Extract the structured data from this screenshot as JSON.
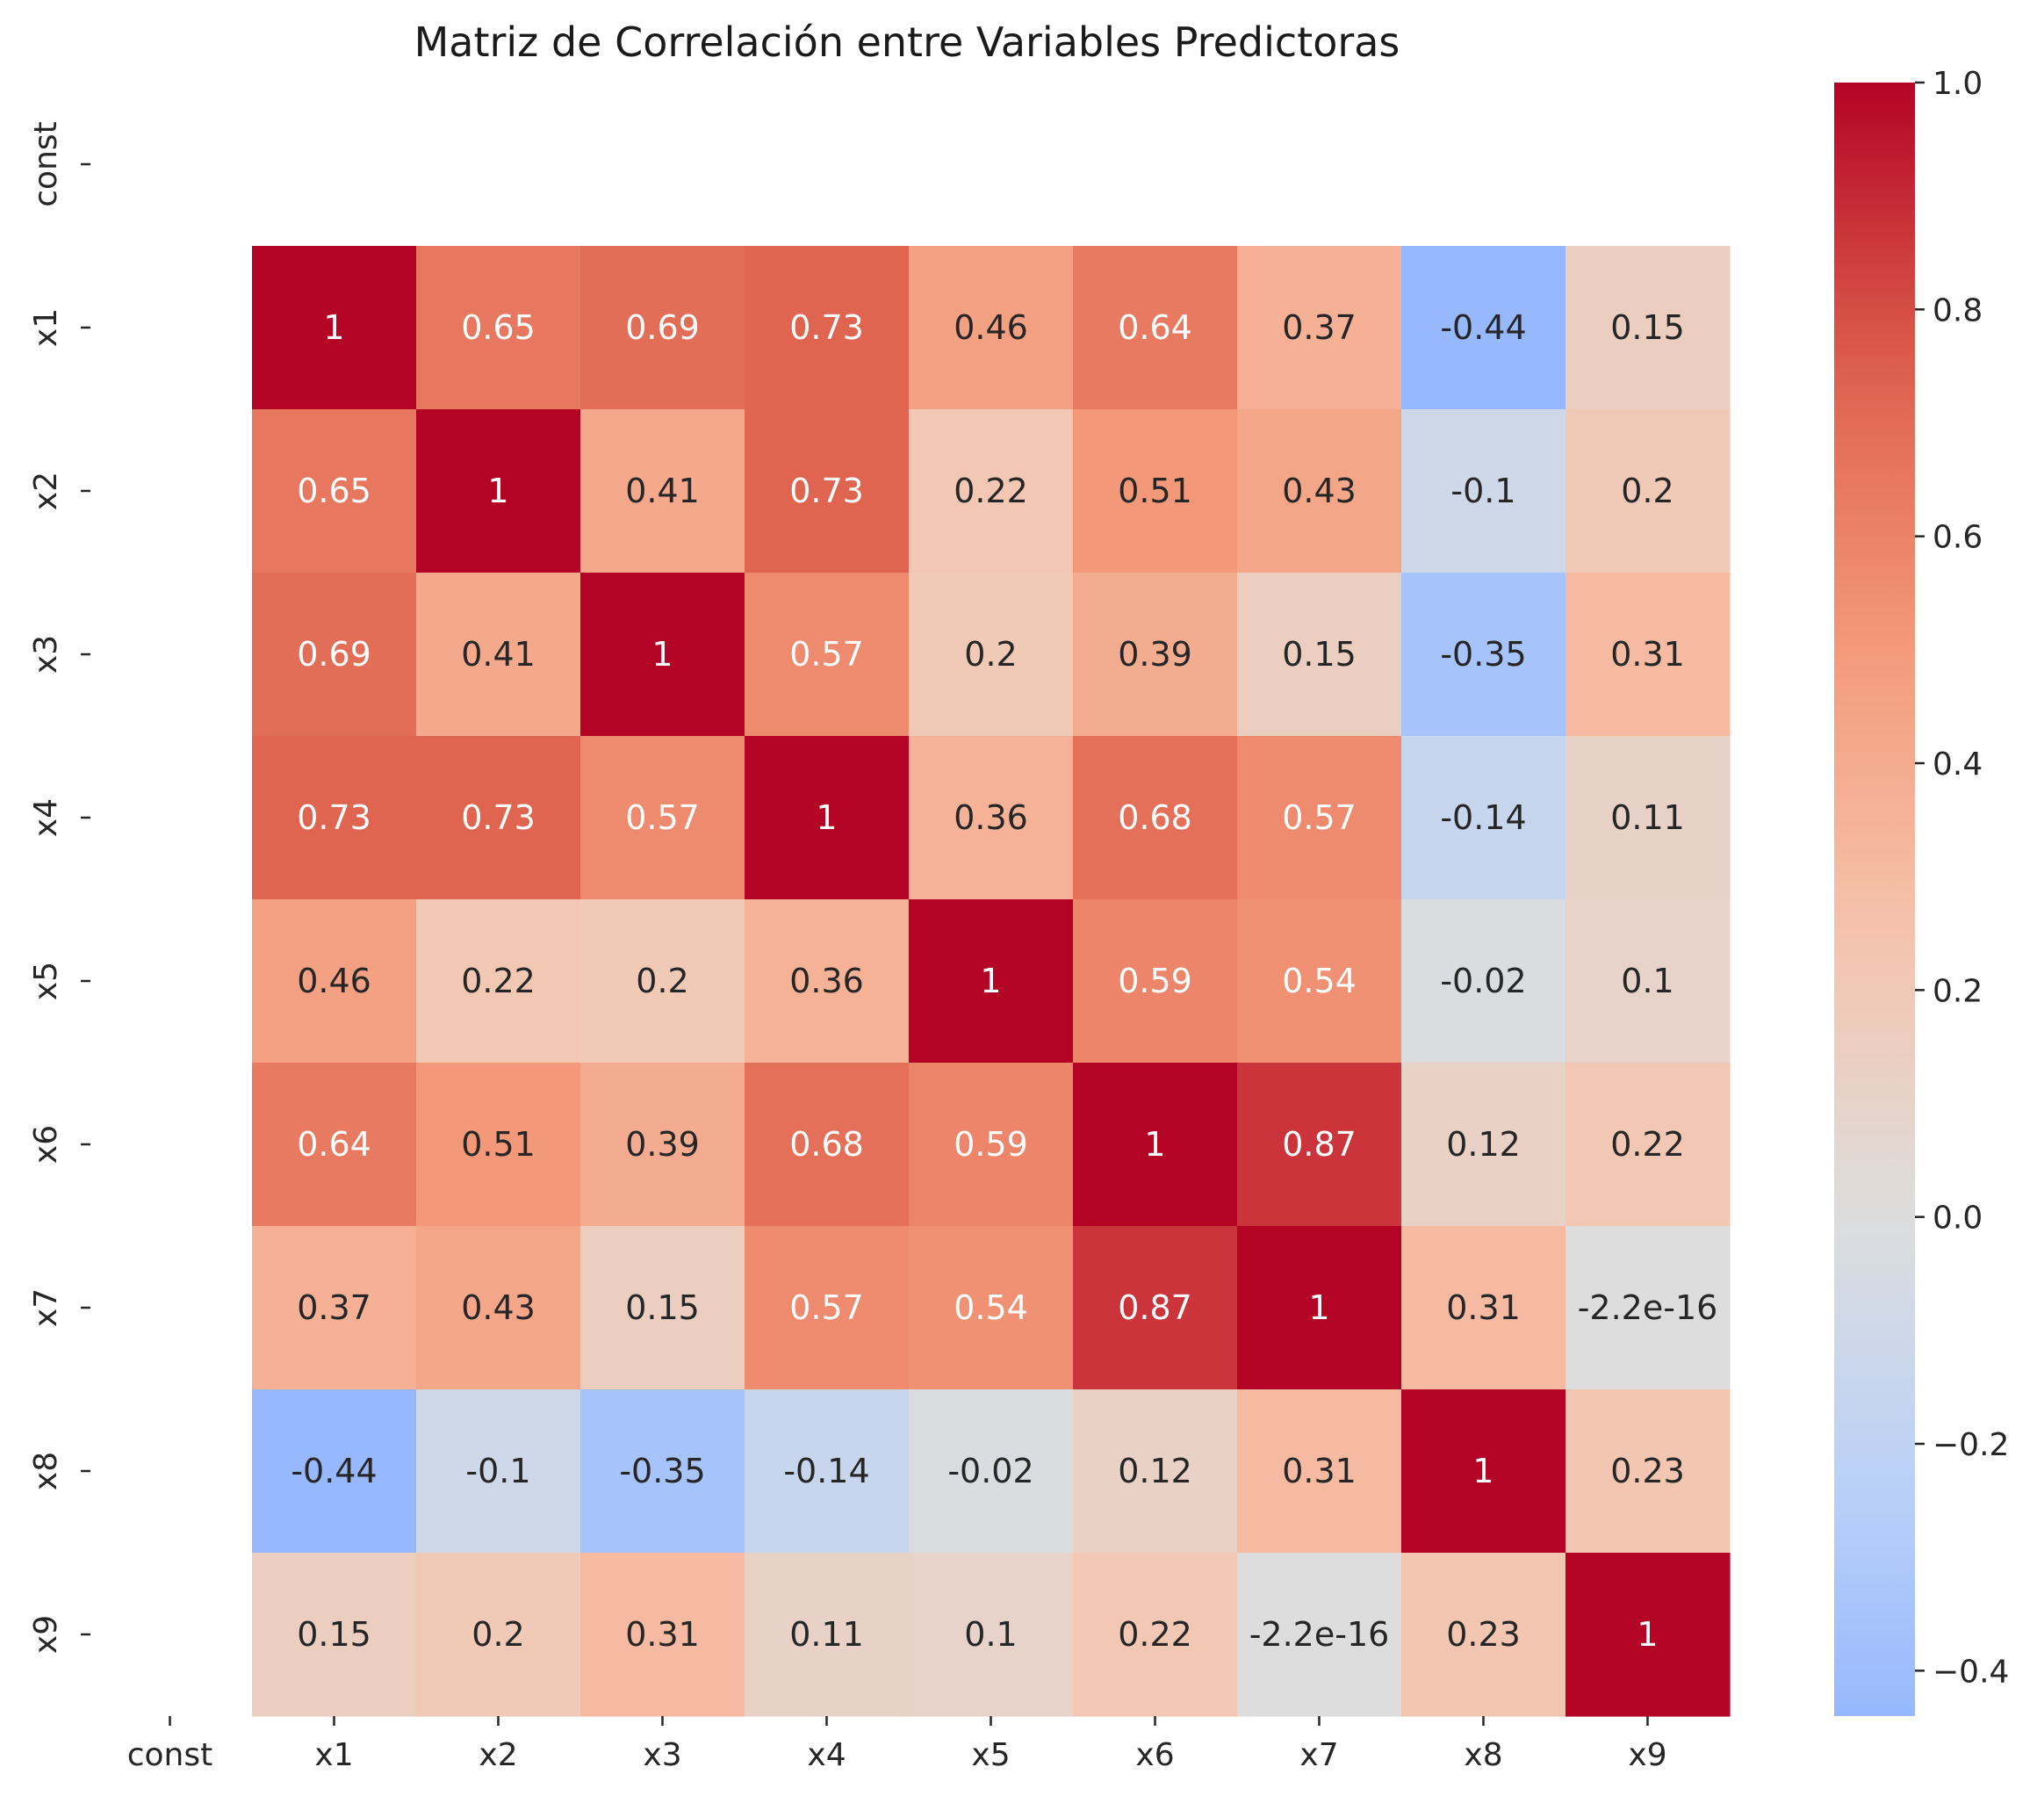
{
  "chart_data": {
    "type": "heatmap",
    "title": "Matriz de Correlación entre Variables Predictoras",
    "row_labels": [
      "const",
      "x1",
      "x2",
      "x3",
      "x4",
      "x5",
      "x6",
      "x7",
      "x8",
      "x9"
    ],
    "col_labels": [
      "const",
      "x1",
      "x2",
      "x3",
      "x4",
      "x5",
      "x6",
      "x7",
      "x8",
      "x9"
    ],
    "values": [
      [
        null,
        null,
        null,
        null,
        null,
        null,
        null,
        null,
        null,
        null
      ],
      [
        null,
        1,
        0.65,
        0.69,
        0.73,
        0.46,
        0.64,
        0.37,
        -0.44,
        0.15
      ],
      [
        null,
        0.65,
        1,
        0.41,
        0.73,
        0.22,
        0.51,
        0.43,
        -0.1,
        0.2
      ],
      [
        null,
        0.69,
        0.41,
        1,
        0.57,
        0.2,
        0.39,
        0.15,
        -0.35,
        0.31
      ],
      [
        null,
        0.73,
        0.73,
        0.57,
        1,
        0.36,
        0.68,
        0.57,
        -0.14,
        0.11
      ],
      [
        null,
        0.46,
        0.22,
        0.2,
        0.36,
        1,
        0.59,
        0.54,
        -0.02,
        0.1
      ],
      [
        null,
        0.64,
        0.51,
        0.39,
        0.68,
        0.59,
        1,
        0.87,
        0.12,
        0.22
      ],
      [
        null,
        0.37,
        0.43,
        0.15,
        0.57,
        0.54,
        0.87,
        1,
        0.31,
        -2.2e-16
      ],
      [
        null,
        -0.44,
        -0.1,
        -0.35,
        -0.14,
        -0.02,
        0.12,
        0.31,
        1,
        0.23
      ],
      [
        null,
        0.15,
        0.2,
        0.31,
        0.11,
        0.1,
        0.22,
        -2.2e-16,
        0.23,
        1
      ]
    ],
    "annotations": [
      [
        "",
        "",
        "",
        "",
        "",
        "",
        "",
        "",
        "",
        ""
      ],
      [
        "",
        "1",
        "0.65",
        "0.69",
        "0.73",
        "0.46",
        "0.64",
        "0.37",
        "-0.44",
        "0.15"
      ],
      [
        "",
        "0.65",
        "1",
        "0.41",
        "0.73",
        "0.22",
        "0.51",
        "0.43",
        "-0.1",
        "0.2"
      ],
      [
        "",
        "0.69",
        "0.41",
        "1",
        "0.57",
        "0.2",
        "0.39",
        "0.15",
        "-0.35",
        "0.31"
      ],
      [
        "",
        "0.73",
        "0.73",
        "0.57",
        "1",
        "0.36",
        "0.68",
        "0.57",
        "-0.14",
        "0.11"
      ],
      [
        "",
        "0.46",
        "0.22",
        "0.2",
        "0.36",
        "1",
        "0.59",
        "0.54",
        "-0.02",
        "0.1"
      ],
      [
        "",
        "0.64",
        "0.51",
        "0.39",
        "0.68",
        "0.59",
        "1",
        "0.87",
        "0.12",
        "0.22"
      ],
      [
        "",
        "0.37",
        "0.43",
        "0.15",
        "0.57",
        "0.54",
        "0.87",
        "1",
        "0.31",
        "-2.2e-16"
      ],
      [
        "",
        "-0.44",
        "-0.1",
        "-0.35",
        "-0.14",
        "-0.02",
        "0.12",
        "0.31",
        "1",
        "0.23"
      ],
      [
        "",
        "0.15",
        "0.2",
        "0.31",
        "0.11",
        "0.1",
        "0.22",
        "-2.2e-16",
        "0.23",
        "1"
      ]
    ],
    "colormap": "coolwarm",
    "color_center": 0,
    "vmin": -0.44,
    "vmax": 1,
    "colorbar_ticks": [
      "1.0",
      "0.8",
      "0.6",
      "0.4",
      "0.2",
      "0.0",
      "−0.2",
      "−0.4"
    ],
    "colorbar_tick_values": [
      1.0,
      0.8,
      0.6,
      0.4,
      0.2,
      0.0,
      -0.2,
      -0.4
    ],
    "xlabel": "",
    "ylabel": "",
    "grid": false,
    "legend": "colorbar-right"
  }
}
